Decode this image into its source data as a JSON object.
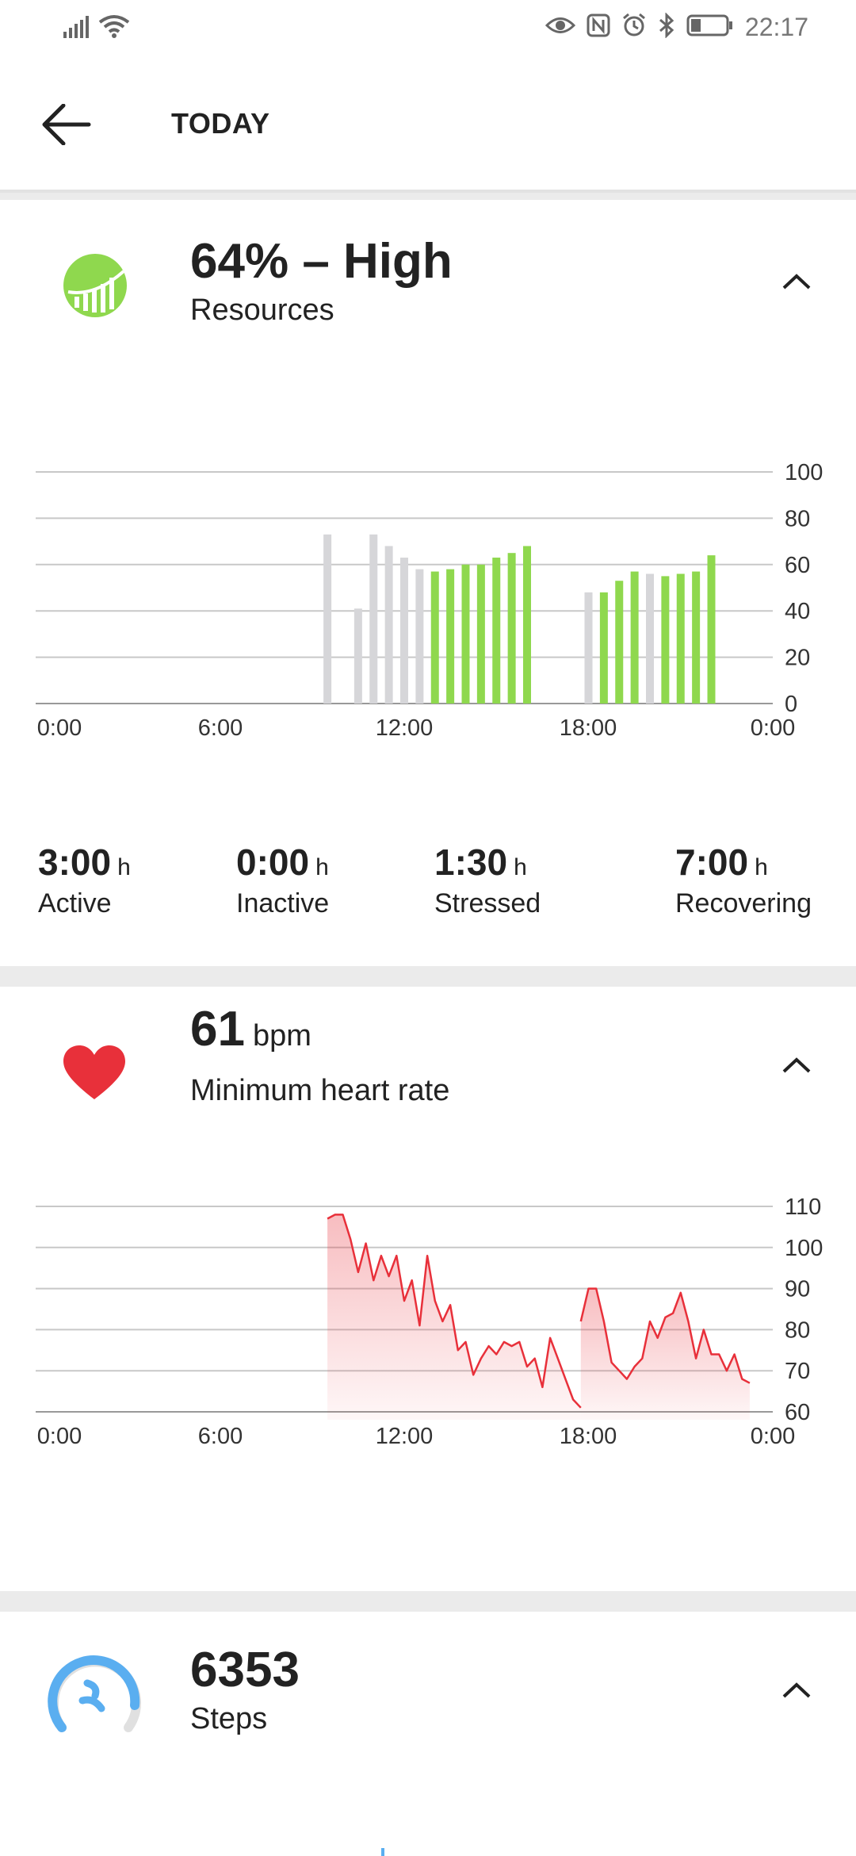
{
  "status_bar": {
    "time": "22:17",
    "icons": [
      "signal-icon",
      "wifi-icon",
      "eye-icon",
      "nfc-icon",
      "alarm-icon",
      "bluetooth-icon",
      "battery-icon"
    ]
  },
  "header": {
    "title": "TODAY",
    "back_icon": "back-arrow-icon"
  },
  "resources": {
    "value": "64% – High",
    "label": "Resources",
    "icon": "resources-gauge-icon",
    "accent": "#8fd84e"
  },
  "stats": [
    {
      "value": "3:00",
      "unit": "h",
      "label": "Active"
    },
    {
      "value": "0:00",
      "unit": "h",
      "label": "Inactive"
    },
    {
      "value": "1:30",
      "unit": "h",
      "label": "Stressed"
    },
    {
      "value": "7:00",
      "unit": "h",
      "label": "Recovering"
    }
  ],
  "heart": {
    "value": "61",
    "unit": "bpm",
    "label": "Minimum heart rate",
    "icon": "heart-icon",
    "color": "#e8303a"
  },
  "steps": {
    "value": "6353",
    "label": "Steps",
    "icon": "steps-gauge-icon",
    "color": "#5aaef0"
  },
  "chart_data": [
    {
      "type": "bar",
      "x_unit": "hours",
      "xlim": [
        0,
        24
      ],
      "ylim": [
        0,
        100
      ],
      "yticks": [
        "0",
        "20",
        "40",
        "60",
        "80",
        "100"
      ],
      "xticks": [
        "0:00",
        "6:00",
        "12:00",
        "18:00",
        "0:00"
      ],
      "grid": true,
      "colors": {
        "gray": "#d6d6d9",
        "green": "#8fd84e"
      },
      "bars": [
        {
          "x": 9.5,
          "value": 73,
          "color": "gray"
        },
        {
          "x": 10.5,
          "value": 41,
          "color": "gray"
        },
        {
          "x": 11.0,
          "value": 73,
          "color": "gray"
        },
        {
          "x": 11.5,
          "value": 68,
          "color": "gray"
        },
        {
          "x": 12.0,
          "value": 63,
          "color": "gray"
        },
        {
          "x": 12.5,
          "value": 58,
          "color": "gray"
        },
        {
          "x": 13.0,
          "value": 57,
          "color": "green"
        },
        {
          "x": 13.5,
          "value": 58,
          "color": "green"
        },
        {
          "x": 14.0,
          "value": 60,
          "color": "green"
        },
        {
          "x": 14.5,
          "value": 60,
          "color": "green"
        },
        {
          "x": 15.0,
          "value": 63,
          "color": "green"
        },
        {
          "x": 15.5,
          "value": 65,
          "color": "green"
        },
        {
          "x": 16.0,
          "value": 68,
          "color": "green"
        },
        {
          "x": 18.0,
          "value": 48,
          "color": "gray"
        },
        {
          "x": 18.5,
          "value": 48,
          "color": "green"
        },
        {
          "x": 19.0,
          "value": 53,
          "color": "green"
        },
        {
          "x": 19.5,
          "value": 57,
          "color": "green"
        },
        {
          "x": 20.0,
          "value": 56,
          "color": "gray"
        },
        {
          "x": 20.5,
          "value": 55,
          "color": "green"
        },
        {
          "x": 21.0,
          "value": 56,
          "color": "green"
        },
        {
          "x": 21.5,
          "value": 57,
          "color": "green"
        },
        {
          "x": 22.0,
          "value": 64,
          "color": "green"
        }
      ]
    },
    {
      "type": "area",
      "x_unit": "hours",
      "xlim": [
        0,
        24
      ],
      "ylim": [
        60,
        110
      ],
      "yticks": [
        "60",
        "70",
        "80",
        "90",
        "100",
        "110"
      ],
      "xticks": [
        "0:00",
        "6:00",
        "12:00",
        "18:00",
        "0:00"
      ],
      "grid": true,
      "color": "#e8303a",
      "segments": [
        [
          [
            9.5,
            107
          ],
          [
            9.75,
            108
          ],
          [
            10.0,
            108
          ],
          [
            10.25,
            102
          ],
          [
            10.5,
            94
          ],
          [
            10.75,
            101
          ],
          [
            11.0,
            92
          ],
          [
            11.25,
            98
          ],
          [
            11.5,
            93
          ],
          [
            11.75,
            98
          ],
          [
            12.0,
            87
          ],
          [
            12.25,
            92
          ],
          [
            12.5,
            81
          ],
          [
            12.75,
            98
          ],
          [
            13.0,
            87
          ],
          [
            13.25,
            82
          ],
          [
            13.5,
            86
          ],
          [
            13.75,
            75
          ],
          [
            14.0,
            77
          ],
          [
            14.25,
            69
          ],
          [
            14.5,
            73
          ],
          [
            14.75,
            76
          ],
          [
            15.0,
            74
          ],
          [
            15.25,
            77
          ],
          [
            15.5,
            76
          ],
          [
            15.75,
            77
          ],
          [
            16.0,
            71
          ],
          [
            16.25,
            73
          ],
          [
            16.5,
            66
          ],
          [
            16.75,
            78
          ],
          [
            17.0,
            73
          ],
          [
            17.25,
            68
          ],
          [
            17.5,
            63
          ],
          [
            17.75,
            61
          ]
        ],
        [
          [
            17.75,
            82
          ],
          [
            18.0,
            90
          ],
          [
            18.25,
            90
          ],
          [
            18.5,
            82
          ],
          [
            18.75,
            72
          ],
          [
            19.0,
            70
          ],
          [
            19.25,
            68
          ],
          [
            19.5,
            71
          ],
          [
            19.75,
            73
          ],
          [
            20.0,
            82
          ],
          [
            20.25,
            78
          ],
          [
            20.5,
            83
          ],
          [
            20.75,
            84
          ],
          [
            21.0,
            89
          ],
          [
            21.25,
            82
          ],
          [
            21.5,
            73
          ],
          [
            21.75,
            80
          ],
          [
            22.0,
            74
          ],
          [
            22.25,
            74
          ],
          [
            22.5,
            70
          ],
          [
            22.75,
            74
          ],
          [
            23.0,
            68
          ],
          [
            23.25,
            67
          ]
        ]
      ]
    }
  ]
}
